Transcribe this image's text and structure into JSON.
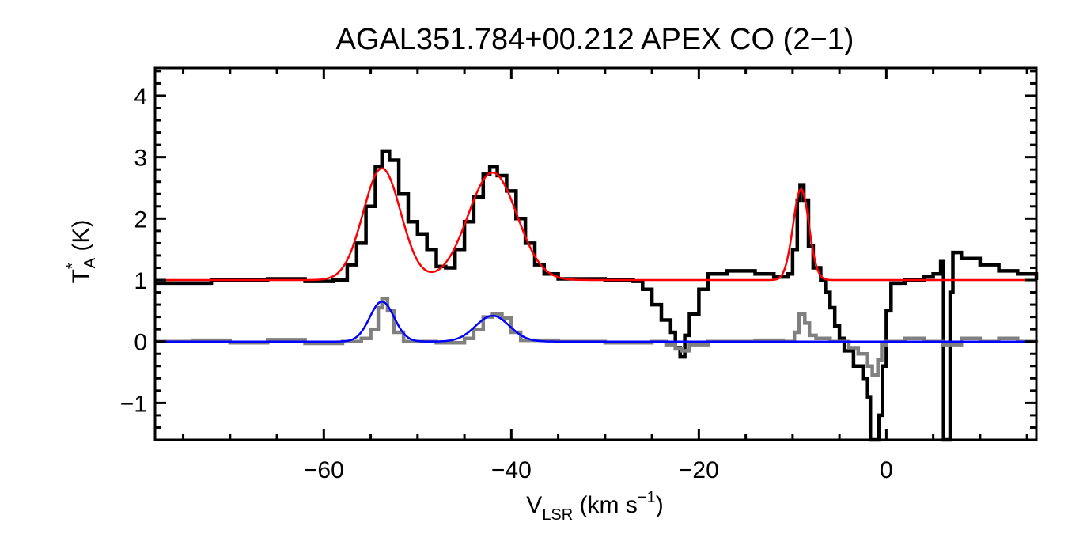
{
  "chart_data": {
    "type": "line",
    "title": "AGAL351.784+00.212  APEX CO (2−1)",
    "xlabel": {
      "main": "V",
      "sub": "LSR",
      "unit_pre": " (km s",
      "unit_sup": "−1",
      "unit_post": ")"
    },
    "ylabel": {
      "main": "T",
      "sup": "*",
      "sub": "A",
      "unit": " (K)"
    },
    "xlim": [
      -78,
      16
    ],
    "ylim": [
      -1.6,
      4.45
    ],
    "xticks": [
      -60,
      -40,
      -20,
      0
    ],
    "xtick_labels": [
      "−60",
      "−40",
      "−20",
      "0"
    ],
    "yticks": [
      -1,
      0,
      1,
      2,
      3,
      4
    ],
    "ytick_labels": [
      "−1",
      "0",
      "1",
      "2",
      "3",
      "4"
    ],
    "grid": false,
    "series": [
      {
        "color": "#000000",
        "style": "histogram",
        "points": [
          [
            -78,
            0.95
          ],
          [
            -72,
            1.0
          ],
          [
            -66,
            1.02
          ],
          [
            -62,
            0.98
          ],
          [
            -59,
            1.0
          ],
          [
            -57.5,
            1.25
          ],
          [
            -56.5,
            1.6
          ],
          [
            -55.5,
            2.2
          ],
          [
            -54.5,
            2.85
          ],
          [
            -53.8,
            3.1
          ],
          [
            -53,
            2.95
          ],
          [
            -52,
            2.4
          ],
          [
            -51,
            1.95
          ],
          [
            -50,
            1.75
          ],
          [
            -49,
            1.5
          ],
          [
            -48,
            1.22
          ],
          [
            -47,
            1.2
          ],
          [
            -46,
            1.5
          ],
          [
            -45,
            1.95
          ],
          [
            -44,
            2.35
          ],
          [
            -43,
            2.72
          ],
          [
            -42.3,
            2.85
          ],
          [
            -41.5,
            2.7
          ],
          [
            -40.5,
            2.45
          ],
          [
            -39.5,
            2.0
          ],
          [
            -38.5,
            1.6
          ],
          [
            -37.5,
            1.25
          ],
          [
            -36.5,
            1.1
          ],
          [
            -35,
            1.02
          ],
          [
            -30,
            1.0
          ],
          [
            -27,
            0.98
          ],
          [
            -26,
            0.85
          ],
          [
            -25,
            0.6
          ],
          [
            -24,
            0.35
          ],
          [
            -23,
            0.15
          ],
          [
            -22.5,
            -0.1
          ],
          [
            -22.0,
            -0.25
          ],
          [
            -21.5,
            0.1
          ],
          [
            -21,
            0.45
          ],
          [
            -20,
            0.85
          ],
          [
            -19,
            1.1
          ],
          [
            -17,
            1.15
          ],
          [
            -14,
            1.1
          ],
          [
            -12,
            1.05
          ],
          [
            -10.5,
            1.1
          ],
          [
            -10,
            1.5
          ],
          [
            -9.5,
            2.3
          ],
          [
            -9.2,
            2.55
          ],
          [
            -8.8,
            2.3
          ],
          [
            -8.3,
            1.55
          ],
          [
            -7.8,
            1.2
          ],
          [
            -7,
            1.0
          ],
          [
            -6.5,
            0.8
          ],
          [
            -6,
            0.55
          ],
          [
            -5.5,
            0.25
          ],
          [
            -5,
            0.05
          ],
          [
            -4.5,
            -0.15
          ],
          [
            -3.5,
            -0.4
          ],
          [
            -2.5,
            -0.6
          ],
          [
            -2,
            -0.9
          ],
          [
            -1.7,
            -1.6
          ],
          [
            -1.2,
            -1.6
          ],
          [
            -0.8,
            -1.2
          ],
          [
            -0.4,
            -0.4
          ],
          [
            0,
            0.5
          ],
          [
            0.5,
            0.95
          ],
          [
            2,
            1.0
          ],
          [
            4,
            1.05
          ],
          [
            5,
            1.1
          ],
          [
            5.8,
            1.3
          ],
          [
            6.1,
            -1.6
          ],
          [
            6.5,
            -1.6
          ],
          [
            6.8,
            0.8
          ],
          [
            7.1,
            1.45
          ],
          [
            8,
            1.35
          ],
          [
            10,
            1.25
          ],
          [
            12,
            1.15
          ],
          [
            14,
            1.1
          ],
          [
            16,
            1.0
          ]
        ]
      },
      {
        "color": "#808080",
        "style": "histogram",
        "points": [
          [
            -78,
            0.0
          ],
          [
            -74,
            0.02
          ],
          [
            -70,
            -0.02
          ],
          [
            -66,
            0.03
          ],
          [
            -62,
            -0.03
          ],
          [
            -58,
            0.0
          ],
          [
            -56,
            0.05
          ],
          [
            -55,
            0.2
          ],
          [
            -54.2,
            0.55
          ],
          [
            -53.8,
            0.7
          ],
          [
            -53.2,
            0.5
          ],
          [
            -52.5,
            0.15
          ],
          [
            -51.5,
            0.0
          ],
          [
            -48,
            -0.02
          ],
          [
            -45,
            0.05
          ],
          [
            -44,
            0.2
          ],
          [
            -43,
            0.4
          ],
          [
            -42,
            0.45
          ],
          [
            -41,
            0.38
          ],
          [
            -40,
            0.15
          ],
          [
            -39,
            0.02
          ],
          [
            -35,
            0.0
          ],
          [
            -30,
            -0.02
          ],
          [
            -25,
            0.0
          ],
          [
            -23.5,
            -0.05
          ],
          [
            -22.5,
            -0.12
          ],
          [
            -21.8,
            -0.15
          ],
          [
            -21,
            -0.05
          ],
          [
            -19,
            0.0
          ],
          [
            -14,
            0.02
          ],
          [
            -11,
            0.0
          ],
          [
            -9.8,
            0.15
          ],
          [
            -9.3,
            0.45
          ],
          [
            -8.7,
            0.3
          ],
          [
            -8.2,
            0.1
          ],
          [
            -7.5,
            0.05
          ],
          [
            -6,
            0.0
          ],
          [
            -4,
            -0.1
          ],
          [
            -3,
            -0.2
          ],
          [
            -2,
            -0.4
          ],
          [
            -1.5,
            -0.55
          ],
          [
            -0.9,
            -0.3
          ],
          [
            -0.5,
            -0.05
          ],
          [
            0,
            0.0
          ],
          [
            2,
            0.05
          ],
          [
            4,
            0.0
          ],
          [
            6,
            -0.05
          ],
          [
            8,
            0.05
          ],
          [
            10,
            0.0
          ],
          [
            12,
            0.05
          ],
          [
            14,
            0.0
          ],
          [
            16,
            0.02
          ]
        ]
      },
      {
        "color": "#ff0000",
        "style": "model",
        "baseline": 1.0,
        "components": [
          {
            "amp": 1.82,
            "center": -53.8,
            "sigma": 2.0
          },
          {
            "amp": 1.75,
            "center": -42.0,
            "sigma": 2.6
          },
          {
            "amp": 1.48,
            "center": -9.1,
            "sigma": 0.85
          }
        ]
      },
      {
        "color": "#0000ff",
        "style": "model",
        "baseline": 0.0,
        "components": [
          {
            "amp": 0.65,
            "center": -53.8,
            "sigma": 1.3
          },
          {
            "amp": 0.42,
            "center": -42.0,
            "sigma": 1.8
          }
        ]
      }
    ]
  }
}
